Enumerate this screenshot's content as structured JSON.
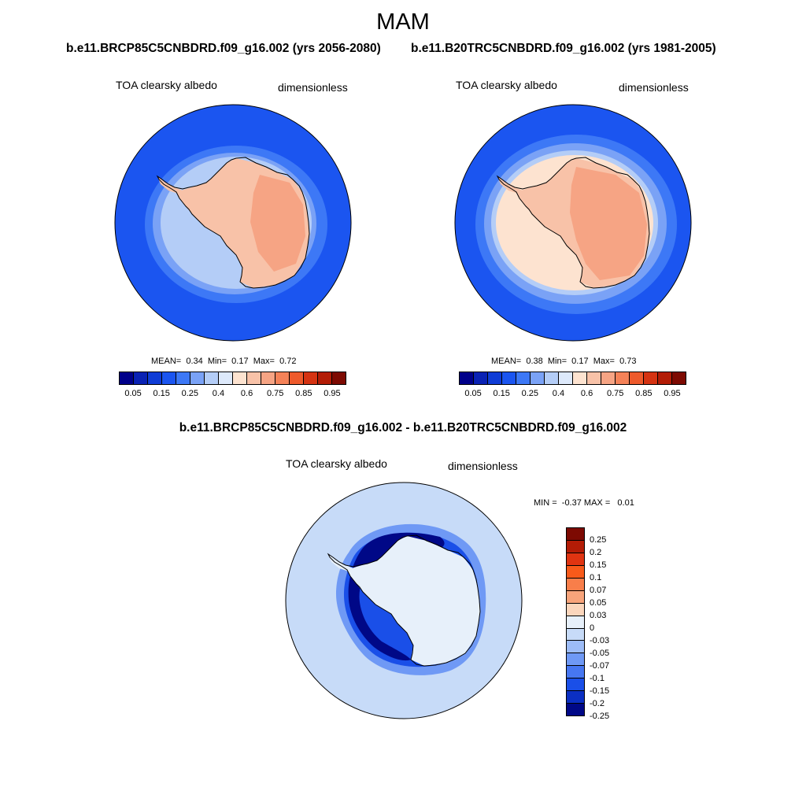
{
  "title": "MAM",
  "panel_left": {
    "case": "b.e11.BRCP85C5CNBDRD.f09_g16.002 (yrs 2056-2080)",
    "variable": "TOA clearsky albedo",
    "units": "dimensionless",
    "mean_label": "MEAN=",
    "mean": "0.34",
    "min_label": "Min=",
    "min": "0.17",
    "max_label": "Max=",
    "max": "0.72"
  },
  "panel_right": {
    "case": "b.e11.B20TRC5CNBDRD.f09_g16.002 (yrs 1981-2005)",
    "variable": "TOA clearsky albedo",
    "units": "dimensionless",
    "mean_label": "MEAN=",
    "mean": "0.38",
    "min_label": "Min=",
    "min": "0.17",
    "max_label": "Max=",
    "max": "0.73"
  },
  "panel_diff": {
    "title": "b.e11.BRCP85C5CNBDRD.f09_g16.002 - b.e11.B20TRC5CNBDRD.f09_g16.002",
    "variable": "TOA clearsky albedo",
    "units": "dimensionless",
    "min_label": "MIN =",
    "min": "-0.37",
    "max_label": "MAX =",
    "max": "0.01"
  },
  "abs_colorbar": {
    "colors": [
      "#00008a",
      "#0a22b4",
      "#0f3cd6",
      "#1b55f0",
      "#3d78f6",
      "#7aa2f6",
      "#b4cdf7",
      "#dde9fb",
      "#fde3d0",
      "#f8c2a8",
      "#f6a484",
      "#f58258",
      "#ee5a2c",
      "#d53312",
      "#b31c06",
      "#7d0a02"
    ],
    "tick_labels": [
      "0.05",
      "0.15",
      "0.25",
      "0.4",
      "0.6",
      "0.75",
      "0.85",
      "0.95"
    ]
  },
  "diff_colorbar": {
    "colors": [
      "#7d0a02",
      "#b31c06",
      "#e03411",
      "#f85a1a",
      "#f87e4a",
      "#f8a47b",
      "#fbd6bc",
      "#e7f0fa",
      "#c7dbf8",
      "#9dbcf7",
      "#6f99f5",
      "#4777f1",
      "#1a4fe8",
      "#0b2fc3",
      "#000887"
    ],
    "tick_labels": [
      "0.25",
      "0.2",
      "0.15",
      "0.1",
      "0.07",
      "0.05",
      "0.03",
      "0",
      "-0.03",
      "-0.05",
      "-0.07",
      "-0.1",
      "-0.15",
      "-0.2",
      "-0.25"
    ]
  }
}
